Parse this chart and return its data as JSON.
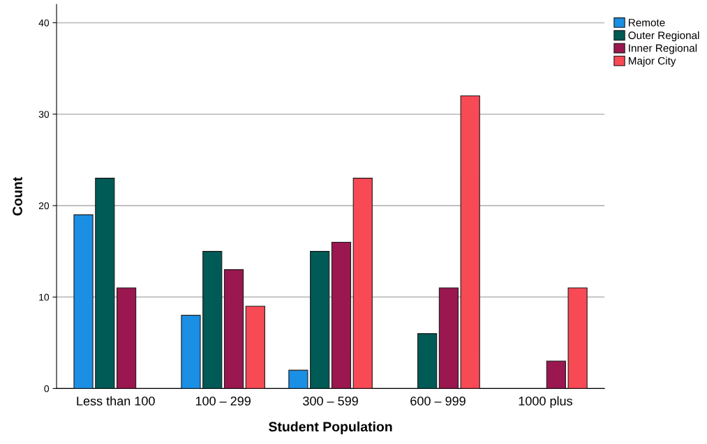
{
  "chart_data": {
    "type": "bar",
    "xlabel": "Student Population",
    "ylabel": "Count",
    "categories": [
      "Less than 100",
      "100 – 299",
      "300 – 599",
      "600 – 999",
      "1000 plus"
    ],
    "series": [
      {
        "name": "Remote",
        "color": "#1a8fe3",
        "values": [
          19,
          8,
          2,
          null,
          null
        ]
      },
      {
        "name": "Outer Regional",
        "color": "#005a55",
        "values": [
          23,
          15,
          15,
          6,
          null
        ]
      },
      {
        "name": "Inner Regional",
        "color": "#9a174f",
        "values": [
          11,
          13,
          16,
          11,
          3
        ]
      },
      {
        "name": "Major City",
        "color": "#f74a55",
        "values": [
          null,
          9,
          23,
          32,
          11
        ]
      }
    ],
    "ylim": [
      0,
      42
    ],
    "yticks": [
      0,
      10,
      20,
      30,
      40
    ],
    "grid": "y",
    "legend": "top right"
  }
}
